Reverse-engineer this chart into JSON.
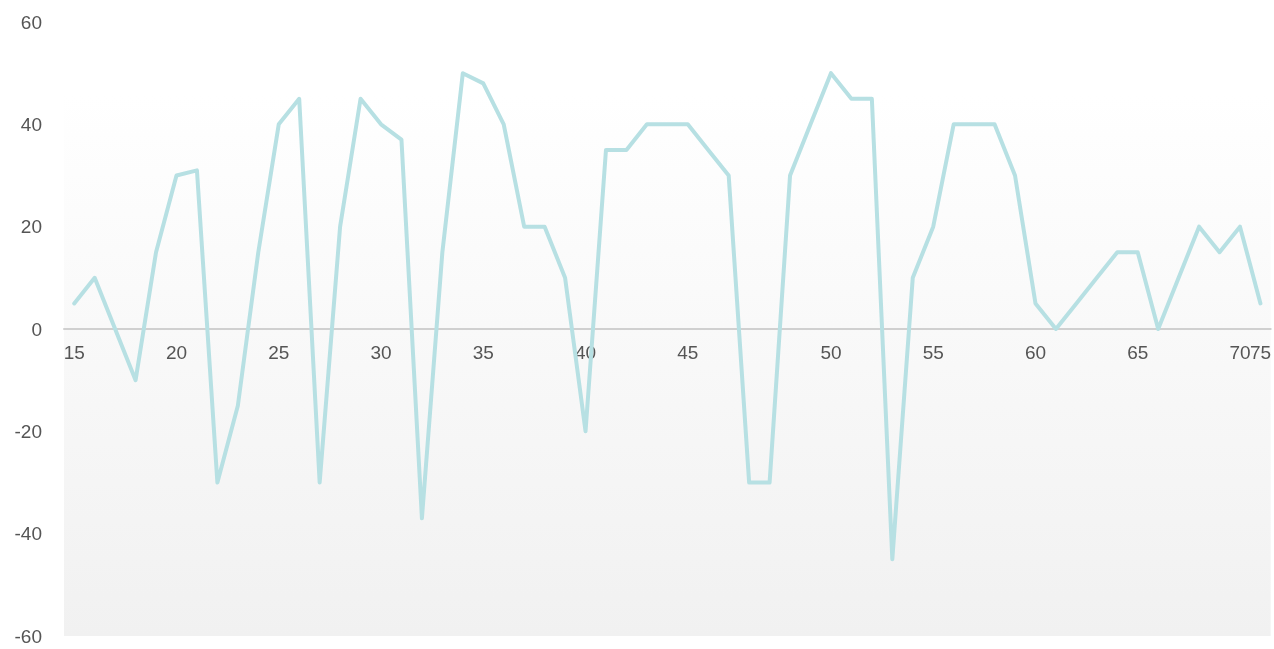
{
  "chart_data": {
    "type": "line",
    "categories": [
      "15",
      null,
      null,
      null,
      null,
      "20",
      null,
      null,
      null,
      null,
      "25",
      null,
      null,
      null,
      null,
      "30",
      null,
      null,
      null,
      null,
      "35",
      null,
      null,
      null,
      null,
      "40",
      null,
      null,
      null,
      null,
      "45",
      null,
      null,
      null,
      null,
      null,
      null,
      "50",
      null,
      null,
      null,
      null,
      "55",
      null,
      null,
      null,
      null,
      "60",
      null,
      null,
      null,
      null,
      "65",
      null,
      null,
      null,
      null,
      "70",
      "75"
    ],
    "series": [
      {
        "color": "#b7e0e3",
        "values": [
          5,
          10,
          0,
          -10,
          15,
          30,
          31,
          -30,
          -15,
          15,
          40,
          45,
          -30,
          20,
          45,
          40,
          37,
          -37,
          15,
          50,
          48,
          40,
          20,
          20,
          10,
          -20,
          35,
          35,
          40,
          40,
          40,
          35,
          30,
          -30,
          -30,
          30,
          40,
          50,
          45,
          45,
          -45,
          10,
          20,
          40,
          40,
          40,
          30,
          5,
          0,
          5,
          10,
          15,
          15,
          0,
          10,
          20,
          15,
          20,
          5
        ]
      }
    ],
    "ylim": [
      -60,
      60
    ],
    "yticks": [
      -60,
      -40,
      -20,
      0,
      20,
      40,
      60
    ],
    "grid": false,
    "marker": "none",
    "line_style": "solid"
  }
}
